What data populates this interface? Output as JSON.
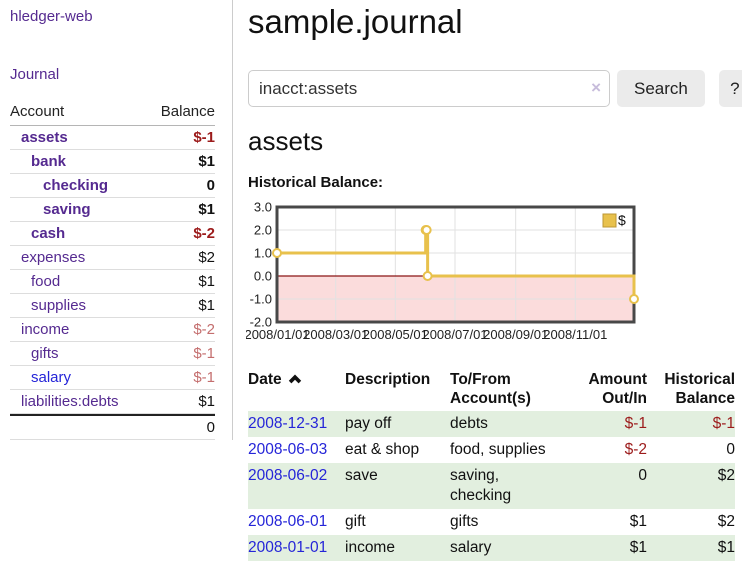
{
  "colors": {
    "link_purple": "#552a90",
    "link_blue": "#2525d8",
    "negative_strong": "#9c1b1b",
    "negative_soft": "#c46e6e",
    "row_stripe_green": "#e2efdf"
  },
  "sidebar": {
    "brand": "hledger-web",
    "journal_label": "Journal",
    "accounts": {
      "header_account": "Account",
      "header_balance": "Balance",
      "rows": [
        {
          "account": "assets",
          "balance": "$-1",
          "depth": 1,
          "bold": true,
          "neg": "strong"
        },
        {
          "account": "bank",
          "balance": "$1",
          "depth": 2,
          "bold": true
        },
        {
          "account": "checking",
          "balance": "0",
          "depth": 3,
          "bold": true
        },
        {
          "account": "saving",
          "balance": "$1",
          "depth": 3,
          "bold": true
        },
        {
          "account": "cash",
          "balance": "$-2",
          "depth": 2,
          "bold": true,
          "neg": "strong"
        },
        {
          "account": "expenses",
          "balance": "$2",
          "depth": 1
        },
        {
          "account": "food",
          "balance": "$1",
          "depth": 2
        },
        {
          "account": "supplies",
          "balance": "$1",
          "depth": 2
        },
        {
          "account": "income",
          "balance": "$-2",
          "depth": 1,
          "neg": "soft"
        },
        {
          "account": "gifts",
          "balance": "$-1",
          "depth": 2,
          "neg": "soft"
        },
        {
          "account": "salary",
          "balance": "$-1",
          "depth": 2,
          "neg": "soft",
          "link": "blue"
        },
        {
          "account": "liabilities:debts",
          "balance": "$1",
          "depth": 1
        }
      ],
      "total": "0"
    }
  },
  "header": {
    "title": "sample.journal"
  },
  "search": {
    "value": "inacct:assets",
    "clear_icon": "×",
    "button_label": "Search",
    "help_label": "?"
  },
  "account_page": {
    "title": "assets",
    "chart_label": "Historical Balance:"
  },
  "chart_data": {
    "type": "line",
    "step": true,
    "title": "Historical Balance",
    "x_start": "2008-01-01",
    "x_end": "2008-12-31",
    "x_ticks": [
      "2008/01/01",
      "2008/03/01",
      "2008/05/01",
      "2008/07/01",
      "2008/09/01",
      "2008/11/01"
    ],
    "y_ticks": [
      3,
      2,
      1,
      0,
      -1,
      -2
    ],
    "ylim": [
      -2,
      3
    ],
    "grid": true,
    "negative_fill": "#fbdcdc",
    "zero_line_color": "#8b1515",
    "legend": {
      "label": "$",
      "position": "top-right"
    },
    "series": [
      {
        "name": "$",
        "color": "#e8c14c",
        "points": [
          {
            "date": "2008-01-01",
            "value": 1
          },
          {
            "date": "2008-06-01",
            "value": 2
          },
          {
            "date": "2008-06-02",
            "value": 2
          },
          {
            "date": "2008-06-03",
            "value": 0
          },
          {
            "date": "2008-12-31",
            "value": -1
          }
        ]
      }
    ]
  },
  "register": {
    "columns": [
      {
        "label": "Date",
        "sorted": "asc"
      },
      {
        "label": "Description"
      },
      {
        "label": "To/From Account(s)"
      },
      {
        "label": "Amount Out/In",
        "align": "right"
      },
      {
        "label": "Historical Balance",
        "align": "right"
      }
    ],
    "rows": [
      {
        "date": "2008-12-31",
        "description": "pay off",
        "accounts": "debts",
        "amount": "$-1",
        "balance": "$-1"
      },
      {
        "date": "2008-06-03",
        "description": "eat & shop",
        "accounts": "food, supplies",
        "amount": "$-2",
        "balance": "0"
      },
      {
        "date": "2008-06-02",
        "description": "save",
        "accounts": "saving, checking",
        "amount": "0",
        "balance": "$2"
      },
      {
        "date": "2008-06-01",
        "description": "gift",
        "accounts": "gifts",
        "amount": "$1",
        "balance": "$2"
      },
      {
        "date": "2008-01-01",
        "description": "income",
        "accounts": "salary",
        "amount": "$1",
        "balance": "$1"
      }
    ]
  }
}
